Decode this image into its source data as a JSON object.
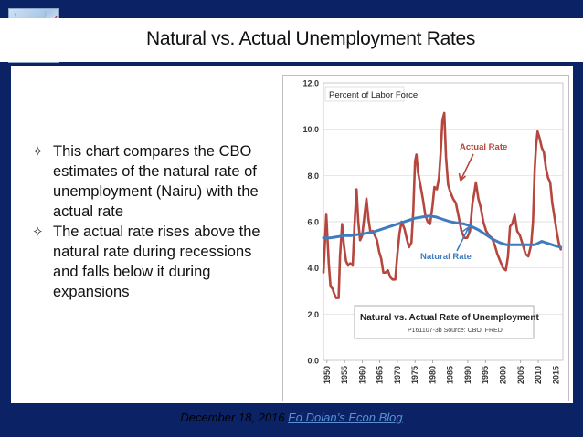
{
  "slide": {
    "title": "Natural vs. Actual Unemployment Rates",
    "bullets": [
      "This chart compares the CBO estimates of the natural rate of unemployment (Nairu) with the actual rate",
      "The actual rate rises above the natural rate during recessions and falls below it during expansions"
    ],
    "footer": {
      "date": "December 18, 2016",
      "link_text": "Ed Dolan’s Econ Blog"
    }
  },
  "chart_data": {
    "type": "line",
    "title": "Natural vs. Actual Rate of Unemployment",
    "subtitle": "P161107-3b Source: CBO, FRED",
    "ylabel": "Percent of Labor Force",
    "ylim": [
      0,
      12
    ],
    "xlim": [
      1949,
      2017
    ],
    "yticks": [
      "0.0",
      "2.0",
      "4.0",
      "6.0",
      "8.0",
      "10.0",
      "12.0"
    ],
    "xticks": [
      "1950",
      "1955",
      "1960",
      "1965",
      "1970",
      "1975",
      "1980",
      "1985",
      "1990",
      "1995",
      "2000",
      "2005",
      "2010",
      "2015"
    ],
    "grid": true,
    "series": [
      {
        "name": "Actual Rate",
        "color": "#b5473e",
        "x": [
          1949,
          1949.8,
          1950.5,
          1951,
          1951.6,
          1952,
          1952.6,
          1953.3,
          1953.7,
          1954.3,
          1954.8,
          1955.4,
          1956,
          1956.6,
          1957.3,
          1957.8,
          1958.4,
          1958.9,
          1959.4,
          1960,
          1960.6,
          1961.2,
          1961.8,
          1962.4,
          1963,
          1963.6,
          1964.2,
          1964.8,
          1965.4,
          1966,
          1966.6,
          1967.3,
          1968,
          1968.6,
          1969.4,
          1970,
          1970.6,
          1971.2,
          1972,
          1972.6,
          1973.3,
          1974,
          1974.5,
          1975,
          1975.4,
          1975.9,
          1976.5,
          1977.2,
          1977.9,
          1978.6,
          1979.3,
          1980,
          1980.5,
          1981.2,
          1981.8,
          1982.3,
          1982.8,
          1983.3,
          1983.8,
          1984.4,
          1985,
          1985.8,
          1986.6,
          1987.4,
          1988.2,
          1989,
          1989.8,
          1990.6,
          1991.3,
          1991.8,
          1992.3,
          1993,
          1993.7,
          1994.4,
          1995.2,
          1996,
          1996.8,
          1997.6,
          1998.4,
          1999.2,
          2000,
          2000.8,
          2001.4,
          2002,
          2002.6,
          2003.3,
          2004,
          2004.8,
          2005.6,
          2006.4,
          2007.2,
          2008,
          2008.5,
          2009,
          2009.4,
          2009.8,
          2010.4,
          2011,
          2011.6,
          2012.2,
          2012.8,
          2013.4,
          2014,
          2014.6,
          2015.2,
          2015.8,
          2016.4
        ],
        "y": [
          3.8,
          6.3,
          4.2,
          3.2,
          3.1,
          2.9,
          2.7,
          2.7,
          4.5,
          5.9,
          5.0,
          4.3,
          4.1,
          4.2,
          4.1,
          5.8,
          7.4,
          6.0,
          5.2,
          5.4,
          6.2,
          7.0,
          6.1,
          5.5,
          5.6,
          5.4,
          5.2,
          4.7,
          4.4,
          3.8,
          3.8,
          3.9,
          3.6,
          3.5,
          3.5,
          4.6,
          5.5,
          6.0,
          5.7,
          5.3,
          4.9,
          5.1,
          6.5,
          8.6,
          8.9,
          8.1,
          7.6,
          7.0,
          6.3,
          6.0,
          5.9,
          6.7,
          7.5,
          7.4,
          7.9,
          9.0,
          10.4,
          10.7,
          8.8,
          7.6,
          7.3,
          7.0,
          6.8,
          6.2,
          5.6,
          5.3,
          5.3,
          5.6,
          6.8,
          7.2,
          7.7,
          7.0,
          6.6,
          6.0,
          5.6,
          5.4,
          5.3,
          5.0,
          4.6,
          4.3,
          4.0,
          3.9,
          4.5,
          5.8,
          5.9,
          6.3,
          5.6,
          5.4,
          5.0,
          4.6,
          4.5,
          5.0,
          6.0,
          8.3,
          9.3,
          9.9,
          9.6,
          9.2,
          9.0,
          8.3,
          7.9,
          7.7,
          6.8,
          6.2,
          5.6,
          5.1,
          4.8
        ]
      },
      {
        "name": "Natural Rate",
        "color": "#3f7cbf",
        "x": [
          1949,
          1951,
          1953,
          1955,
          1957,
          1959,
          1961,
          1963,
          1965,
          1967,
          1969,
          1971,
          1973,
          1975,
          1977,
          1979,
          1981,
          1983,
          1985,
          1987,
          1989,
          1991,
          1993,
          1995,
          1997,
          1999,
          2001,
          2003,
          2005,
          2007,
          2009,
          2011,
          2013,
          2015,
          2016.4
        ],
        "y": [
          5.3,
          5.3,
          5.35,
          5.4,
          5.4,
          5.45,
          5.5,
          5.55,
          5.65,
          5.75,
          5.85,
          5.95,
          6.05,
          6.15,
          6.2,
          6.25,
          6.2,
          6.1,
          6.0,
          5.95,
          5.9,
          5.8,
          5.65,
          5.45,
          5.25,
          5.1,
          5.0,
          5.0,
          5.0,
          5.0,
          5.0,
          5.15,
          5.05,
          4.95,
          4.9
        ]
      }
    ],
    "annotations": [
      {
        "text": "Actual Rate",
        "color": "#b5473e"
      },
      {
        "text": "Natural Rate",
        "color": "#3f7cbf"
      }
    ]
  }
}
